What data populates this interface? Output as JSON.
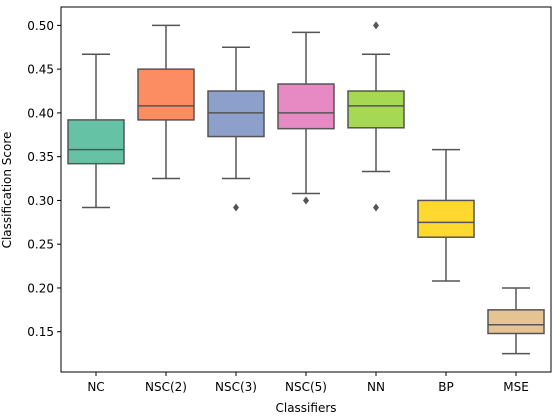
{
  "chart_data": {
    "type": "box",
    "title": "",
    "xlabel": "Classifiers",
    "ylabel": "Classification Score",
    "ylim": [
      0.104,
      0.521
    ],
    "yticks": [
      "0.15",
      "0.20",
      "0.25",
      "0.30",
      "0.35",
      "0.40",
      "0.45",
      "0.50"
    ],
    "grid": false,
    "legend": "none",
    "categories": [
      "NC",
      "NSC(2)",
      "NSC(3)",
      "NSC(5)",
      "NN",
      "BP",
      "MSE"
    ],
    "boxes": [
      {
        "label": "NC",
        "whisker_low": 0.292,
        "q1": 0.342,
        "median": 0.358,
        "q3": 0.392,
        "whisker_high": 0.467,
        "outliers": [],
        "color": "#66c2a5"
      },
      {
        "label": "NSC(2)",
        "whisker_low": 0.325,
        "q1": 0.392,
        "median": 0.408,
        "q3": 0.45,
        "whisker_high": 0.5,
        "outliers": [],
        "color": "#fc8d62"
      },
      {
        "label": "NSC(3)",
        "whisker_low": 0.325,
        "q1": 0.373,
        "median": 0.4,
        "q3": 0.425,
        "whisker_high": 0.475,
        "outliers": [
          0.292
        ],
        "color": "#8da0cb"
      },
      {
        "label": "NSC(5)",
        "whisker_low": 0.308,
        "q1": 0.382,
        "median": 0.4,
        "q3": 0.433,
        "whisker_high": 0.492,
        "outliers": [
          0.3
        ],
        "color": "#e78ac3"
      },
      {
        "label": "NN",
        "whisker_low": 0.333,
        "q1": 0.383,
        "median": 0.408,
        "q3": 0.425,
        "whisker_high": 0.467,
        "outliers": [
          0.292,
          0.5
        ],
        "color": "#a6d854"
      },
      {
        "label": "BP",
        "whisker_low": 0.208,
        "q1": 0.258,
        "median": 0.275,
        "q3": 0.3,
        "whisker_high": 0.358,
        "outliers": [],
        "color": "#ffd92f"
      },
      {
        "label": "MSE",
        "whisker_low": 0.125,
        "q1": 0.148,
        "median": 0.158,
        "q3": 0.175,
        "whisker_high": 0.2,
        "outliers": [],
        "color": "#e5c494"
      }
    ]
  }
}
